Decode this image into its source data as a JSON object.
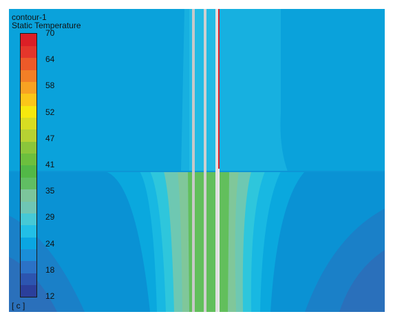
{
  "header": {
    "contour_name": "contour-1",
    "variable": "Static Temperature"
  },
  "legend": {
    "ticks": [
      "70",
      "64",
      "58",
      "52",
      "47",
      "41",
      "35",
      "29",
      "24",
      "18",
      "12"
    ],
    "units": "[ c ]",
    "colors": [
      "#2b3f9b",
      "#2c55b0",
      "#2b72c7",
      "#1a8ed8",
      "#0aa6e2",
      "#22bfe6",
      "#46c9d6",
      "#6fc6b4",
      "#7cc59b",
      "#60be63",
      "#52b847",
      "#6cbf3e",
      "#8bc63b",
      "#b6d233",
      "#d8dd22",
      "#f6e80e",
      "#fbc619",
      "#f8a222",
      "#f37f26",
      "#ec5a29",
      "#e4362b",
      "#dc1f26"
    ]
  },
  "field": {
    "colors": {
      "background_top": "#0aa2db",
      "background_lower": "#0a8fd2",
      "band_far": "#1a7fc7",
      "band_far2": "#2a6fba",
      "band_a": "#16b4e2",
      "band_b": "#2ec7dc",
      "band_c": "#6ec8b2",
      "band_d": "#7cc59b",
      "plume": "#62bf5c",
      "hot_pipe": "#dc1f26",
      "pipe_wall": "#c8c8c8",
      "pipe_wall_light": "#e8e8e8"
    }
  }
}
